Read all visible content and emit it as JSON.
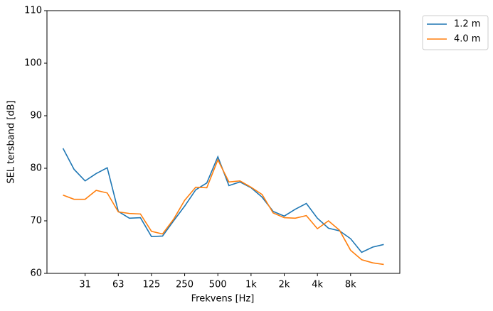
{
  "chart_data": {
    "type": "line",
    "x_label": "Frekvens [Hz]",
    "y_label": "SEL tersband [dB]",
    "categories": [
      null,
      null,
      "31",
      null,
      null,
      "63",
      null,
      null,
      "125",
      null,
      null,
      "250",
      null,
      null,
      "500",
      null,
      null,
      "1k",
      null,
      null,
      "2k",
      null,
      null,
      "4k",
      null,
      null,
      "8k",
      null,
      null,
      null
    ],
    "series": [
      {
        "name": "1.2 m",
        "color": "#1f77b4",
        "values": [
          83.8,
          79.8,
          77.6,
          79.0,
          80.1,
          71.8,
          70.5,
          70.6,
          67.0,
          67.1,
          70.0,
          72.8,
          75.9,
          77.2,
          82.2,
          76.7,
          77.4,
          76.3,
          74.5,
          71.8,
          70.9,
          72.2,
          73.3,
          70.5,
          68.6,
          68.1,
          66.6,
          64.0,
          65.0,
          65.5
        ]
      },
      {
        "name": "4.0 m",
        "color": "#ff7f0e",
        "values": [
          74.9,
          74.1,
          74.1,
          75.8,
          75.3,
          71.7,
          71.4,
          71.3,
          68.0,
          67.5,
          70.3,
          73.9,
          76.4,
          76.3,
          81.6,
          77.4,
          77.6,
          76.4,
          75.0,
          71.5,
          70.6,
          70.5,
          71.0,
          68.5,
          70.0,
          68.2,
          64.4,
          62.6,
          62.0,
          61.7
        ]
      }
    ],
    "ylim": [
      60,
      110
    ],
    "yticks": [
      60,
      70,
      80,
      90,
      100,
      110
    ],
    "grid": false,
    "legend": "outside-upper-right"
  }
}
